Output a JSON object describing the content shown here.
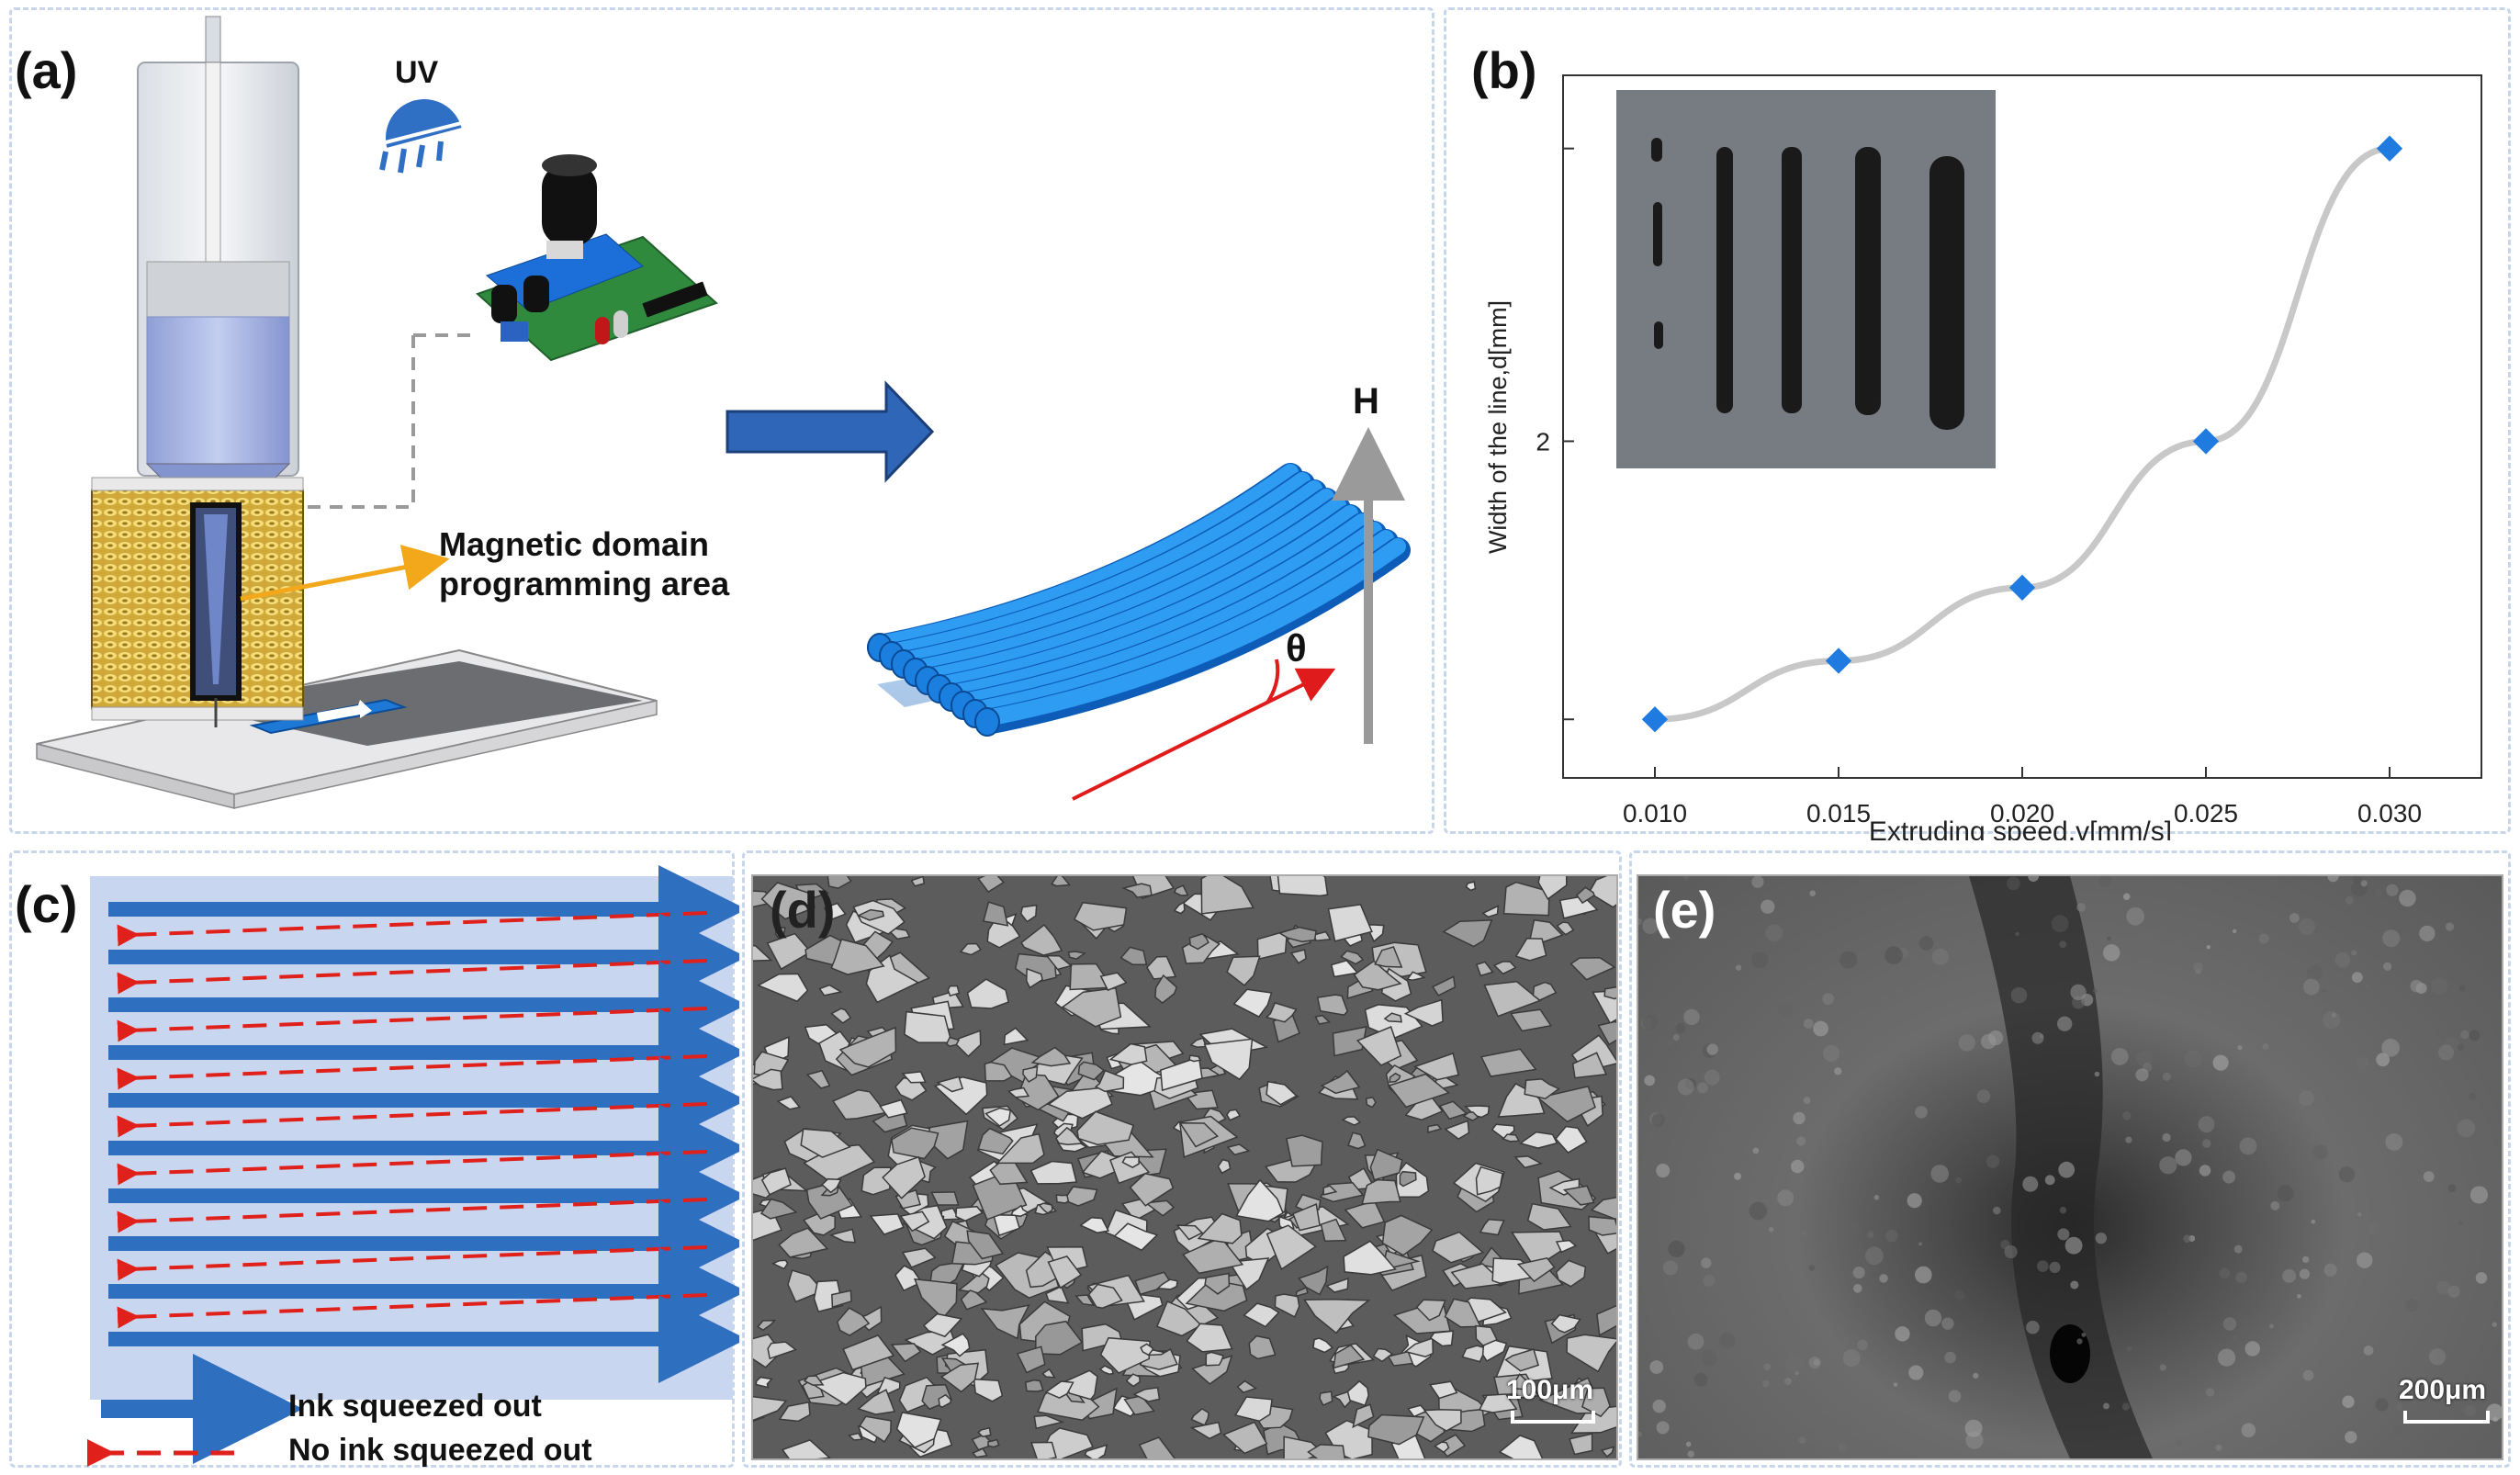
{
  "figure": {
    "panel_labels": {
      "a": "(a)",
      "b": "(b)",
      "c": "(c)",
      "d": "(d)",
      "e": "(e)"
    },
    "colors": {
      "frame": "#c7d6ea",
      "ink_blue": "#2f6fbf",
      "red_dash": "#e0201b",
      "marker_blue": "#1f7be0",
      "line_gray": "#c8c8c8",
      "coil_gold": "#d8b43a"
    }
  },
  "panel_a": {
    "uv_label": "UV",
    "area_label_line1": "Magnetic domain",
    "area_label_line2": "programming area",
    "field_label": "H",
    "angle_label": "θ"
  },
  "panel_b": {
    "chart_data": {
      "type": "line",
      "title": "",
      "xlabel": "Extruding speed,v[mm/s]",
      "ylabel": "Width of the line,d[mm]",
      "x": [
        0.01,
        0.015,
        0.02,
        0.025,
        0.03
      ],
      "x_tick_labels": [
        "0.010",
        "0.015",
        "0.020",
        "0.025",
        "0.030"
      ],
      "series": [
        {
          "name": "line width",
          "values": [
            1.5,
            1.7,
            1.95,
            2.45,
            3.45
          ]
        }
      ],
      "y_tick_labels": [
        "",
        "2",
        ""
      ],
      "y_ticks": [
        1.5,
        2.45,
        3.45
      ],
      "xlim": [
        0.0075,
        0.0325
      ],
      "ylim": [
        1.3,
        3.7
      ],
      "marker": "diamond",
      "inset": "photo of five printed lines of increasing width"
    }
  },
  "panel_c": {
    "legend_solid": "Ink squeezed out",
    "legend_dashed": "No ink squeezed out"
  },
  "panel_d": {
    "scale_label": "100μm"
  },
  "panel_e": {
    "scale_label": "200μm"
  }
}
